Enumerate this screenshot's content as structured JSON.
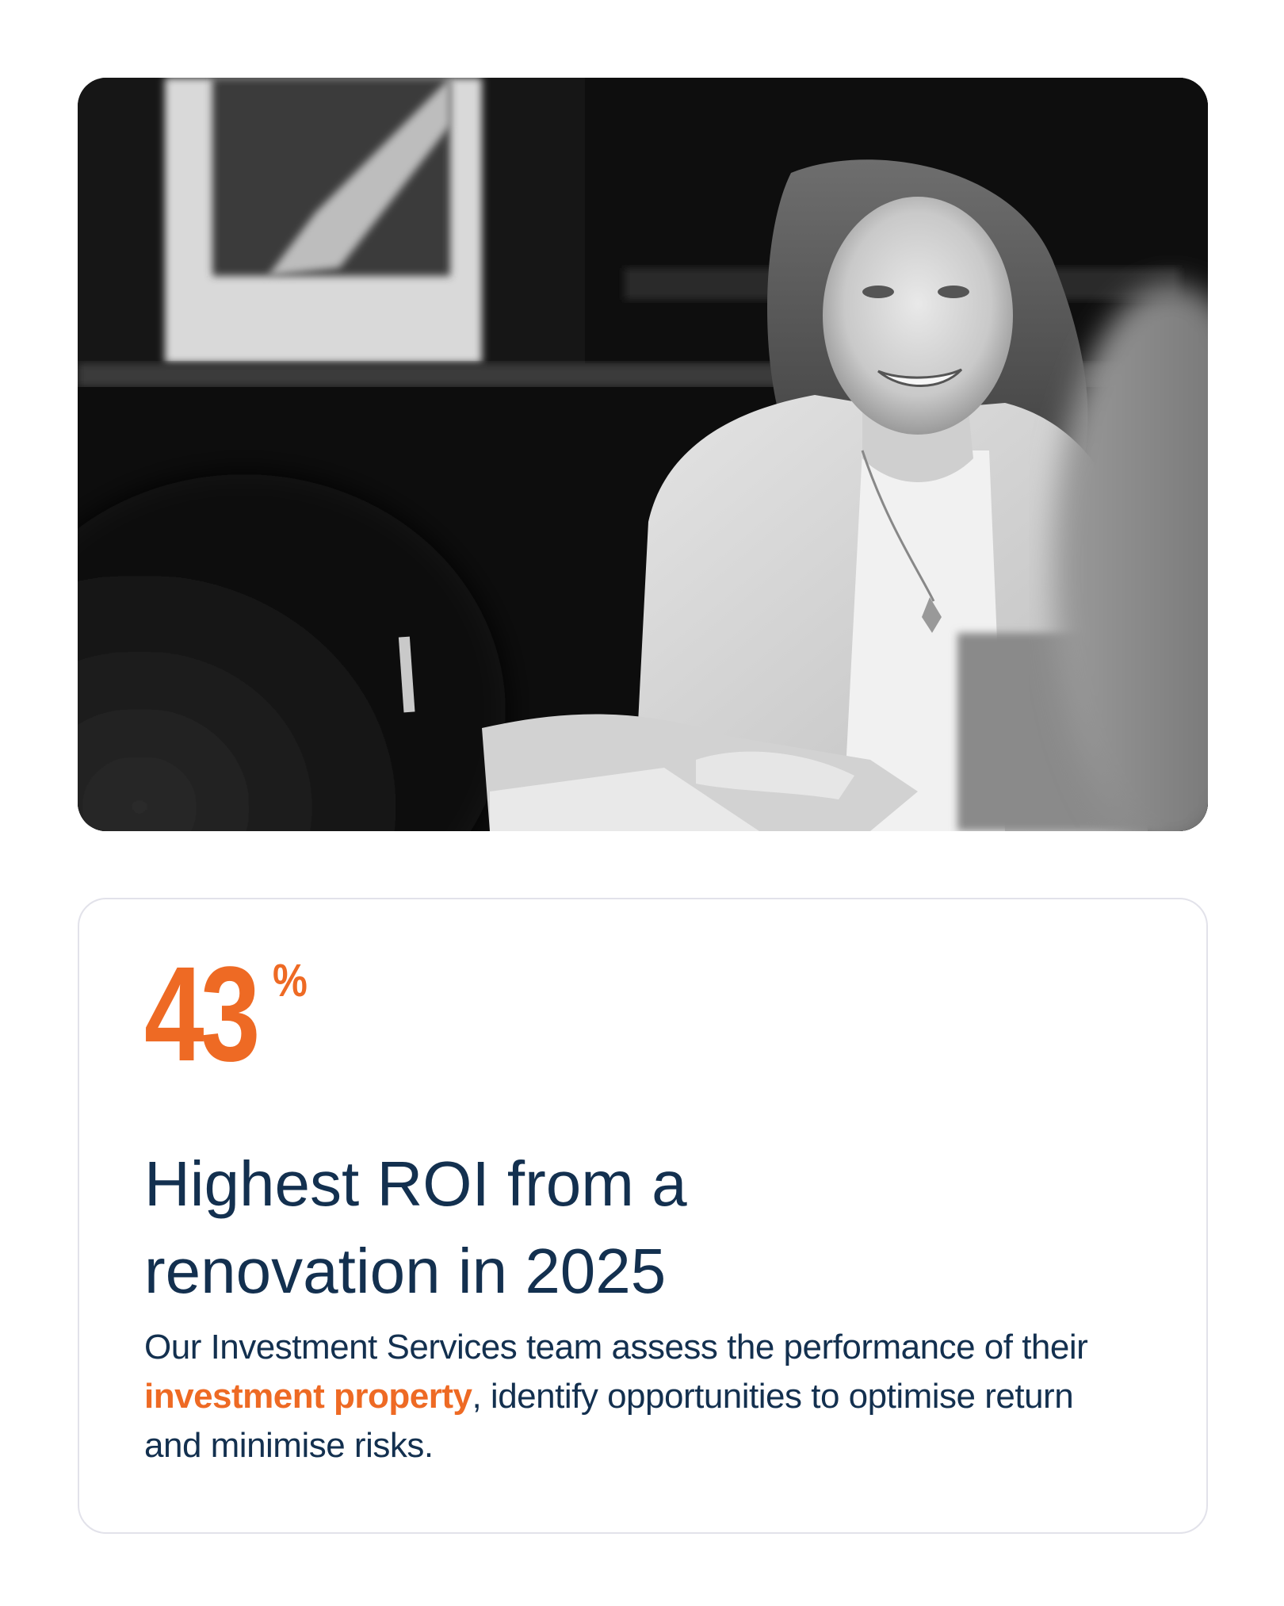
{
  "photo": {
    "description_icon": "person-photo",
    "style": "black-and-white"
  },
  "stat": {
    "value": "43",
    "unit": "%"
  },
  "title": {
    "line1": "Highest ROI from a",
    "line2": "renovation in 2025"
  },
  "body": {
    "before": "Our Investment Services team assess the performance of their ",
    "link": "investment property",
    "after": ", identify opportunities to optimise return and minimise risks."
  },
  "colors": {
    "accent": "#ee6a24",
    "text": "#13304f",
    "card_border": "#e2e2ea"
  }
}
